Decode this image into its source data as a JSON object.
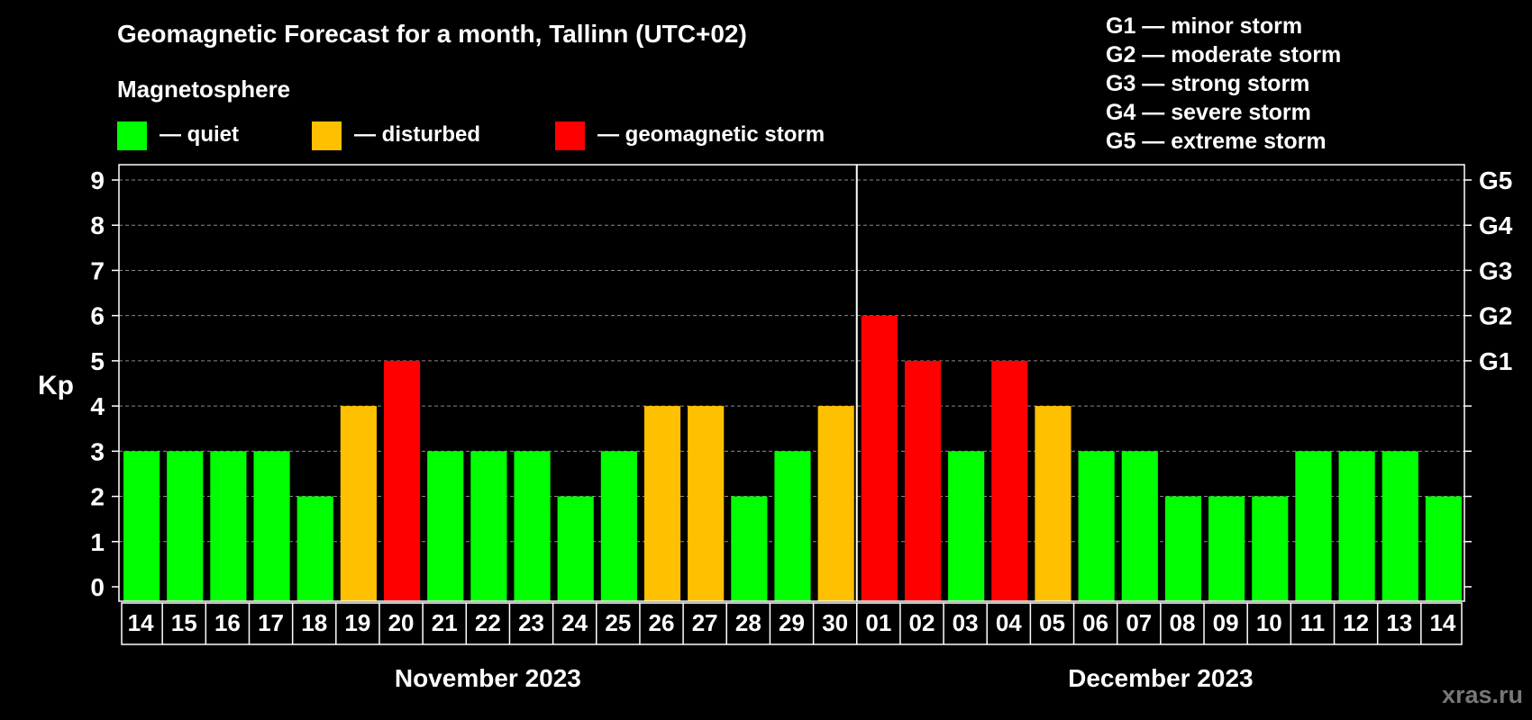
{
  "chart_data": {
    "type": "bar",
    "title": "Geomagnetic Forecast for a month, Tallinn (UTC+02)",
    "legend": {
      "heading": "Magnetosphere",
      "items": [
        {
          "label": "— quiet",
          "color": "#00ff00"
        },
        {
          "label": "— disturbed",
          "color": "#ffc000"
        },
        {
          "label": "— geomagnetic storm",
          "color": "#ff0000"
        }
      ]
    },
    "storm_scale": [
      "G1 — minor storm",
      "G2 — moderate storm",
      "G3 — strong storm",
      "G4 — severe storm",
      "G5 — extreme storm"
    ],
    "ylabel": "Kp",
    "ylim": [
      0,
      9
    ],
    "yticks": [
      "0",
      "1",
      "2",
      "3",
      "4",
      "5",
      "6",
      "7",
      "8",
      "9"
    ],
    "right_axis": [
      {
        "kp": 5,
        "label": "G1"
      },
      {
        "kp": 6,
        "label": "G2"
      },
      {
        "kp": 7,
        "label": "G3"
      },
      {
        "kp": 8,
        "label": "G4"
      },
      {
        "kp": 9,
        "label": "G5"
      }
    ],
    "categories": [
      "14",
      "15",
      "16",
      "17",
      "18",
      "19",
      "20",
      "21",
      "22",
      "23",
      "24",
      "25",
      "26",
      "27",
      "28",
      "29",
      "30",
      "01",
      "02",
      "03",
      "04",
      "05",
      "06",
      "07",
      "08",
      "09",
      "10",
      "11",
      "12",
      "13",
      "14"
    ],
    "values": [
      3,
      3,
      3,
      3,
      2,
      4,
      5,
      3,
      3,
      3,
      2,
      3,
      4,
      4,
      2,
      3,
      4,
      6,
      5,
      3,
      5,
      4,
      3,
      3,
      2,
      2,
      2,
      3,
      3,
      3,
      2
    ],
    "months": [
      {
        "label": "November 2023",
        "start": 0,
        "count": 17
      },
      {
        "label": "December 2023",
        "start": 17,
        "count": 14
      }
    ],
    "thresholds": {
      "disturbed": 4,
      "storm": 5
    },
    "colors": {
      "quiet": "#00ff00",
      "disturbed": "#ffc000",
      "storm": "#ff0000",
      "background": "#000000",
      "axis": "#ffffff"
    }
  },
  "watermark": "xras.ru"
}
